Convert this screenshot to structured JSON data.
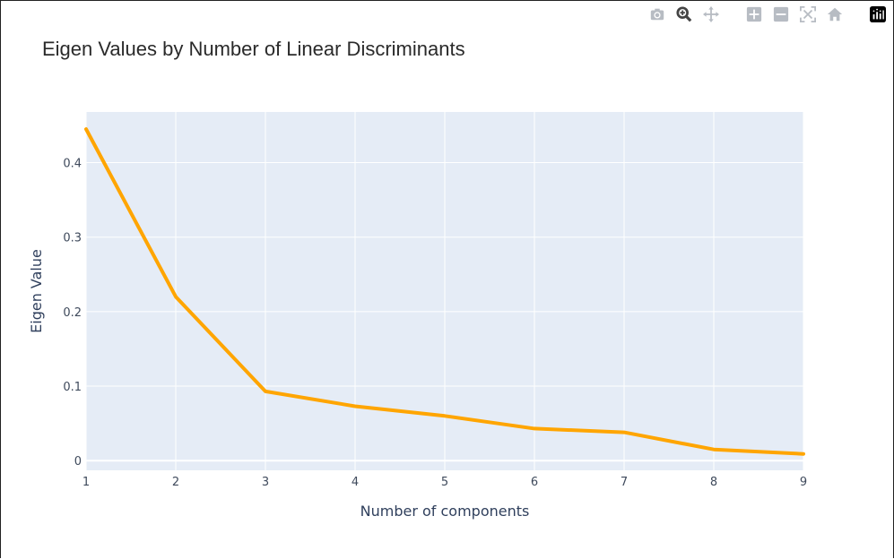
{
  "modebar": {
    "buttons": [
      {
        "name": "camera-icon"
      },
      {
        "name": "zoom-icon"
      },
      {
        "name": "pan-icon"
      },
      {
        "name": "zoom-in-icon"
      },
      {
        "name": "zoom-out-icon"
      },
      {
        "name": "autoscale-icon"
      },
      {
        "name": "reset-axes-icon"
      },
      {
        "name": "plotly-logo-icon"
      }
    ]
  },
  "chart_data": {
    "type": "line",
    "title": "Eigen Values by Number of Linear Discriminants",
    "xlabel": "Number of components",
    "ylabel": "Eigen Value",
    "x": [
      1,
      2,
      3,
      4,
      5,
      6,
      7,
      8,
      9
    ],
    "series": [
      {
        "values": [
          0.445,
          0.22,
          0.093,
          0.073,
          0.06,
          0.043,
          0.038,
          0.015,
          0.009
        ],
        "color": "#ffa500"
      }
    ],
    "xlim": [
      1,
      9
    ],
    "ylim": [
      -0.013,
      0.468
    ],
    "xticks": [
      "1",
      "2",
      "3",
      "4",
      "5",
      "6",
      "7",
      "8",
      "9"
    ],
    "yticks": [
      {
        "value": 0,
        "label": "0"
      },
      {
        "value": 0.1,
        "label": "0.1"
      },
      {
        "value": 0.2,
        "label": "0.2"
      },
      {
        "value": 0.3,
        "label": "0.3"
      },
      {
        "value": 0.4,
        "label": "0.4"
      }
    ],
    "grid": true,
    "plot_bg": "#e5ecf6",
    "grid_color": "#ffffff"
  }
}
